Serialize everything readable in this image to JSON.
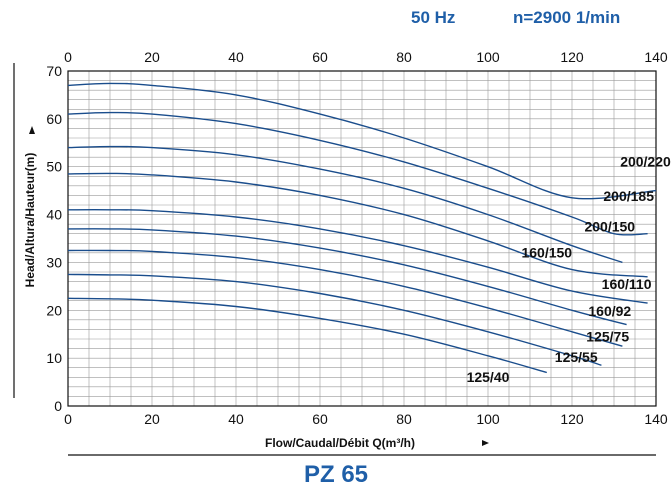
{
  "header": {
    "frequency": "50 Hz",
    "speed": "n=2900 1/min"
  },
  "model": "PZ 65",
  "chart_data": {
    "type": "line",
    "xlabel": "Flow/Caudal/Débit Q(m³/h)",
    "ylabel": "Head/Altura/Hauteur(m)",
    "xlim": [
      0,
      140
    ],
    "ylim": [
      0,
      70
    ],
    "x_ticks": [
      "0",
      "20",
      "40",
      "60",
      "80",
      "100",
      "120",
      "140"
    ],
    "y_ticks": [
      "0",
      "10",
      "20",
      "30",
      "40",
      "50",
      "60",
      "70"
    ],
    "grid": true,
    "series": [
      {
        "name": "200/220",
        "x": [
          0,
          10,
          20,
          40,
          60,
          80,
          100,
          120,
          140
        ],
        "y": [
          67,
          67.4,
          67,
          65,
          61,
          56,
          50,
          43.5,
          45
        ]
      },
      {
        "name": "200/185",
        "x": [
          0,
          10,
          20,
          40,
          60,
          80,
          100,
          120,
          130,
          138
        ],
        "y": [
          61,
          61.3,
          61,
          59,
          55.5,
          51,
          45.5,
          39.5,
          36,
          36
        ]
      },
      {
        "name": "200/150",
        "x": [
          0,
          10,
          20,
          40,
          60,
          80,
          100,
          120,
          132
        ],
        "y": [
          54,
          54.2,
          54,
          52.5,
          49.5,
          45.5,
          40,
          33.5,
          30
        ]
      },
      {
        "name": "160/150",
        "x": [
          0,
          10,
          20,
          40,
          60,
          80,
          100,
          120,
          138
        ],
        "y": [
          48.5,
          48.6,
          48.3,
          46.8,
          44,
          40,
          34.5,
          28.5,
          27
        ]
      },
      {
        "name": "160/110",
        "x": [
          0,
          10,
          20,
          40,
          60,
          80,
          100,
          120,
          138
        ],
        "y": [
          41,
          41,
          40.8,
          39.5,
          37,
          33.5,
          29,
          24,
          21.5
        ]
      },
      {
        "name": "160/92",
        "x": [
          0,
          10,
          20,
          40,
          60,
          80,
          100,
          120,
          133
        ],
        "y": [
          37,
          37,
          36.8,
          35.5,
          33,
          29.5,
          25,
          20,
          17
        ]
      },
      {
        "name": "125/75",
        "x": [
          0,
          10,
          20,
          40,
          60,
          80,
          100,
          120,
          132
        ],
        "y": [
          32.5,
          32.5,
          32.3,
          31,
          28.5,
          25,
          20.5,
          15.5,
          12.5
        ]
      },
      {
        "name": "125/55",
        "x": [
          0,
          10,
          20,
          40,
          60,
          80,
          100,
          120,
          127
        ],
        "y": [
          27.5,
          27.4,
          27.2,
          26,
          23.5,
          20,
          15.5,
          10.5,
          8.5
        ]
      },
      {
        "name": "125/40",
        "x": [
          0,
          10,
          20,
          40,
          60,
          80,
          100,
          114
        ],
        "y": [
          22.5,
          22.4,
          22.1,
          20.8,
          18.3,
          15,
          10.5,
          7
        ]
      }
    ],
    "curve_labels": [
      {
        "text": "200/220",
        "x": 137.5,
        "y": 50.0
      },
      {
        "text": "200/185",
        "x": 133.5,
        "y": 42.8
      },
      {
        "text": "200/150",
        "x": 129.0,
        "y": 36.5
      },
      {
        "text": "160/150",
        "x": 114.0,
        "y": 31.0
      },
      {
        "text": "160/110",
        "x": 133.0,
        "y": 24.5
      },
      {
        "text": "160/92",
        "x": 129.0,
        "y": 18.8
      },
      {
        "text": "125/75",
        "x": 128.5,
        "y": 13.5
      },
      {
        "text": "125/55",
        "x": 121.0,
        "y": 9.2
      },
      {
        "text": "125/40",
        "x": 100.0,
        "y": 5.0
      }
    ],
    "colors": {
      "curve": "#1a4d8c",
      "grid": "#9a9a9a",
      "text": "#111111",
      "header": "#1f5fa8"
    }
  }
}
